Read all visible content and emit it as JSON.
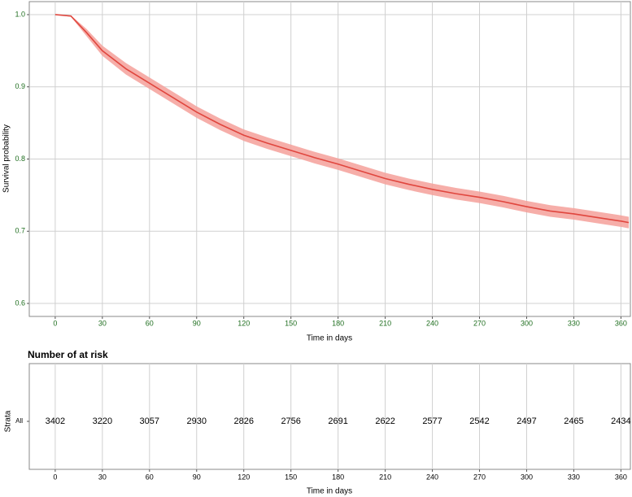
{
  "chart_data": [
    {
      "type": "line",
      "y_label": "Survival probability",
      "x_label": "Time in days",
      "x": [
        0,
        10,
        20,
        30,
        45,
        60,
        75,
        90,
        105,
        120,
        135,
        150,
        165,
        180,
        195,
        210,
        225,
        240,
        255,
        270,
        285,
        300,
        315,
        330,
        345,
        360,
        365
      ],
      "series": [
        {
          "color": "#e0463e",
          "band_color": "#f4a09a",
          "values": [
            1.0,
            0.998,
            0.975,
            0.95,
            0.925,
            0.905,
            0.885,
            0.865,
            0.848,
            0.833,
            0.822,
            0.812,
            0.802,
            0.793,
            0.783,
            0.773,
            0.765,
            0.758,
            0.752,
            0.747,
            0.741,
            0.734,
            0.728,
            0.724,
            0.719,
            0.714,
            0.712
          ],
          "lower": [
            1.0,
            0.997,
            0.97,
            0.943,
            0.917,
            0.897,
            0.877,
            0.857,
            0.84,
            0.825,
            0.814,
            0.804,
            0.794,
            0.785,
            0.775,
            0.765,
            0.757,
            0.75,
            0.744,
            0.739,
            0.733,
            0.726,
            0.72,
            0.716,
            0.711,
            0.706,
            0.704
          ],
          "upper": [
            1.0,
            0.999,
            0.98,
            0.957,
            0.933,
            0.913,
            0.893,
            0.873,
            0.856,
            0.841,
            0.83,
            0.82,
            0.81,
            0.801,
            0.791,
            0.781,
            0.773,
            0.766,
            0.76,
            0.755,
            0.749,
            0.742,
            0.736,
            0.732,
            0.727,
            0.722,
            0.72
          ]
        }
      ],
      "xlim": [
        -16.5,
        366
      ],
      "ylim": [
        0.582,
        1.018
      ],
      "xticks": [
        0,
        30,
        60,
        90,
        120,
        150,
        180,
        210,
        240,
        270,
        300,
        330,
        360
      ],
      "yticks": [
        {
          "value": 0.6,
          "label": "0.6"
        },
        {
          "value": 0.7,
          "label": "0.7"
        },
        {
          "value": 0.8,
          "label": "0.8"
        },
        {
          "value": 0.9,
          "label": "0.9"
        },
        {
          "value": 1.0,
          "label": "1.0"
        }
      ],
      "grid": true
    },
    {
      "type": "risk_table",
      "title": "Number of at risk",
      "y_label": "Strata",
      "strata": "All",
      "strata_color": "#e0463e",
      "x_label": "Time in days",
      "x": [
        0,
        30,
        60,
        90,
        120,
        150,
        180,
        210,
        240,
        270,
        300,
        330,
        360
      ],
      "values": [
        3402,
        3220,
        3057,
        2930,
        2826,
        2756,
        2691,
        2622,
        2577,
        2542,
        2497,
        2465,
        2434
      ],
      "xlim": [
        -16.5,
        366
      ],
      "xticks": [
        0,
        30,
        60,
        90,
        120,
        150,
        180,
        210,
        240,
        270,
        300,
        330,
        360
      ],
      "grid": true
    }
  ]
}
